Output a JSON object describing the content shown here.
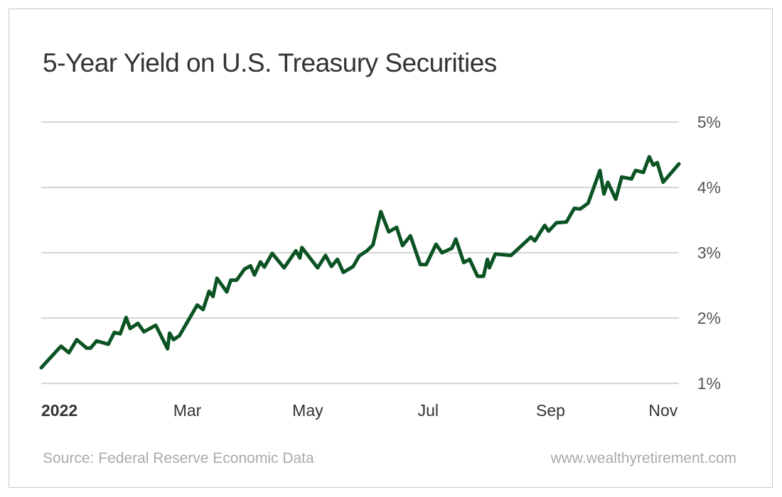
{
  "chart_data": {
    "type": "line",
    "title": "5-Year Yield on U.S. Treasury Securities",
    "xlabel": "",
    "ylabel": "",
    "ylim": [
      1,
      5
    ],
    "yticks": [
      "5%",
      "4%",
      "3%",
      "2%",
      "1%"
    ],
    "ytick_values": [
      5,
      4,
      3,
      2,
      1
    ],
    "xticks": [
      {
        "label": "2022",
        "date": "2022-01-01"
      },
      {
        "label": "Mar",
        "date": "2022-03-16"
      },
      {
        "label": "May",
        "date": "2022-05-16"
      },
      {
        "label": "Jul",
        "date": "2022-07-16"
      },
      {
        "label": "Sep",
        "date": "2022-09-16"
      },
      {
        "label": "Nov",
        "date": "2022-11-12"
      }
    ],
    "xlim": [
      "2022-01-01",
      "2022-11-20"
    ],
    "grid": "horizontal",
    "line_color": "#0b5323",
    "series": [
      {
        "x": [
          "2022-01-01",
          "2022-01-11",
          "2022-01-15",
          "2022-01-19",
          "2022-01-24",
          "2022-01-26",
          "2022-01-29",
          "2022-02-04",
          "2022-02-07",
          "2022-02-10",
          "2022-02-13",
          "2022-02-15",
          "2022-02-19",
          "2022-02-22",
          "2022-02-28",
          "2022-03-06",
          "2022-03-07",
          "2022-03-09",
          "2022-03-12",
          "2022-03-21",
          "2022-03-24",
          "2022-03-27",
          "2022-03-29",
          "2022-03-31",
          "2022-04-05",
          "2022-04-07",
          "2022-04-10",
          "2022-04-14",
          "2022-04-17",
          "2022-04-19",
          "2022-04-22",
          "2022-04-24",
          "2022-04-28",
          "2022-05-04",
          "2022-05-10",
          "2022-05-12",
          "2022-05-13",
          "2022-05-21",
          "2022-05-25",
          "2022-05-28",
          "2022-05-31",
          "2022-06-03",
          "2022-06-08",
          "2022-06-11",
          "2022-06-15",
          "2022-06-18",
          "2022-06-22",
          "2022-06-26",
          "2022-06-30",
          "2022-07-03",
          "2022-07-07",
          "2022-07-12",
          "2022-07-15",
          "2022-07-20",
          "2022-07-23",
          "2022-07-28",
          "2022-07-30",
          "2022-08-03",
          "2022-08-06",
          "2022-08-10",
          "2022-08-13",
          "2022-08-15",
          "2022-08-16",
          "2022-08-19",
          "2022-08-27",
          "2022-09-06",
          "2022-09-08",
          "2022-09-13",
          "2022-09-15",
          "2022-09-19",
          "2022-09-24",
          "2022-09-28",
          "2022-10-01",
          "2022-10-05",
          "2022-10-11",
          "2022-10-13",
          "2022-10-15",
          "2022-10-19",
          "2022-10-22",
          "2022-10-27",
          "2022-10-29",
          "2022-11-02",
          "2022-11-05",
          "2022-11-07",
          "2022-11-09",
          "2022-11-12",
          "2022-11-20"
        ],
        "y": [
          1.24,
          1.57,
          1.47,
          1.67,
          1.54,
          1.54,
          1.65,
          1.6,
          1.78,
          1.76,
          2.01,
          1.84,
          1.92,
          1.79,
          1.89,
          1.53,
          1.77,
          1.67,
          1.73,
          2.2,
          2.13,
          2.41,
          2.33,
          2.61,
          2.4,
          2.58,
          2.58,
          2.75,
          2.8,
          2.66,
          2.86,
          2.78,
          2.99,
          2.77,
          3.03,
          2.92,
          3.08,
          2.77,
          2.96,
          2.79,
          2.9,
          2.7,
          2.79,
          2.95,
          3.03,
          3.12,
          3.63,
          3.32,
          3.39,
          3.11,
          3.26,
          2.82,
          2.82,
          3.13,
          3.0,
          3.07,
          3.21,
          2.85,
          2.9,
          2.64,
          2.64,
          2.9,
          2.77,
          2.98,
          2.96,
          3.24,
          3.18,
          3.42,
          3.33,
          3.46,
          3.47,
          3.68,
          3.67,
          3.76,
          4.26,
          3.9,
          4.08,
          3.82,
          4.16,
          4.13,
          4.26,
          4.23,
          4.47,
          4.34,
          4.38,
          4.08,
          4.36
        ]
      }
    ]
  },
  "footer": {
    "source": "Source: Federal Reserve Economic Data",
    "website": "www.wealthyretirement.com"
  }
}
